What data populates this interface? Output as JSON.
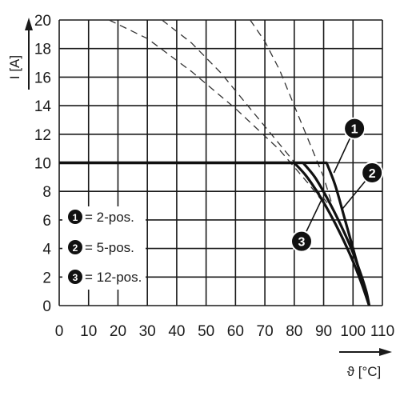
{
  "chart_data": {
    "type": "line",
    "xlabel": "ϑ [°C]",
    "ylabel": "I [A]",
    "xlim": [
      0,
      110
    ],
    "ylim": [
      0,
      20
    ],
    "x_ticks": [
      0,
      10,
      20,
      30,
      40,
      50,
      60,
      70,
      80,
      90,
      100,
      110
    ],
    "y_ticks": [
      0,
      2,
      4,
      6,
      8,
      10,
      12,
      14,
      16,
      18,
      20
    ],
    "grid": true,
    "series": [
      {
        "name": "2-pos.",
        "marker": "1",
        "style": "solid",
        "x": [
          0,
          91,
          94,
          97,
          100,
          103,
          105.5
        ],
        "y": [
          10,
          10,
          8.4,
          6.2,
          4.0,
          1.8,
          0
        ]
      },
      {
        "name": "5-pos.",
        "marker": "2",
        "style": "solid",
        "x": [
          0,
          83,
          87,
          91,
          95,
          99,
          102,
          104.5,
          105.5
        ],
        "y": [
          10,
          10,
          9.0,
          7.6,
          6.0,
          4.2,
          2.6,
          1.0,
          0
        ]
      },
      {
        "name": "12-pos.",
        "marker": "3",
        "style": "solid",
        "x": [
          0,
          80,
          84,
          88,
          92,
          96,
          100,
          103,
          105.5
        ],
        "y": [
          10,
          10,
          9.1,
          7.9,
          6.5,
          4.9,
          3.1,
          1.5,
          0
        ]
      }
    ],
    "dashed_curves": [
      {
        "x": [
          65,
          70,
          75,
          80,
          85,
          90,
          93
        ],
        "y": [
          20,
          18.5,
          16.5,
          14.0,
          11.5,
          9.0,
          7.0
        ]
      },
      {
        "x": [
          35,
          45,
          55,
          65,
          75,
          85,
          92
        ],
        "y": [
          20,
          18.4,
          16.3,
          13.8,
          11.3,
          8.8,
          7.0
        ]
      },
      {
        "x": [
          17,
          30,
          45,
          60,
          75,
          85,
          90
        ],
        "y": [
          20,
          18.7,
          16.4,
          13.8,
          10.9,
          8.5,
          7.2
        ]
      }
    ],
    "legend": {
      "placement": "bottom-left",
      "items": [
        {
          "marker": "1",
          "label": "= 2-pos."
        },
        {
          "marker": "2",
          "label": "= 5-pos."
        },
        {
          "marker": "3",
          "label": "= 12-pos."
        }
      ]
    },
    "callouts": [
      {
        "marker": "1",
        "x": 100.5,
        "y": 12.4,
        "line_to": [
          93.5,
          9.3
        ]
      },
      {
        "marker": "2",
        "x": 106.5,
        "y": 9.3,
        "line_to": [
          96.5,
          6.8
        ]
      },
      {
        "marker": "3",
        "x": 82.5,
        "y": 4.5,
        "line_to": [
          89.5,
          7.5
        ]
      }
    ]
  }
}
